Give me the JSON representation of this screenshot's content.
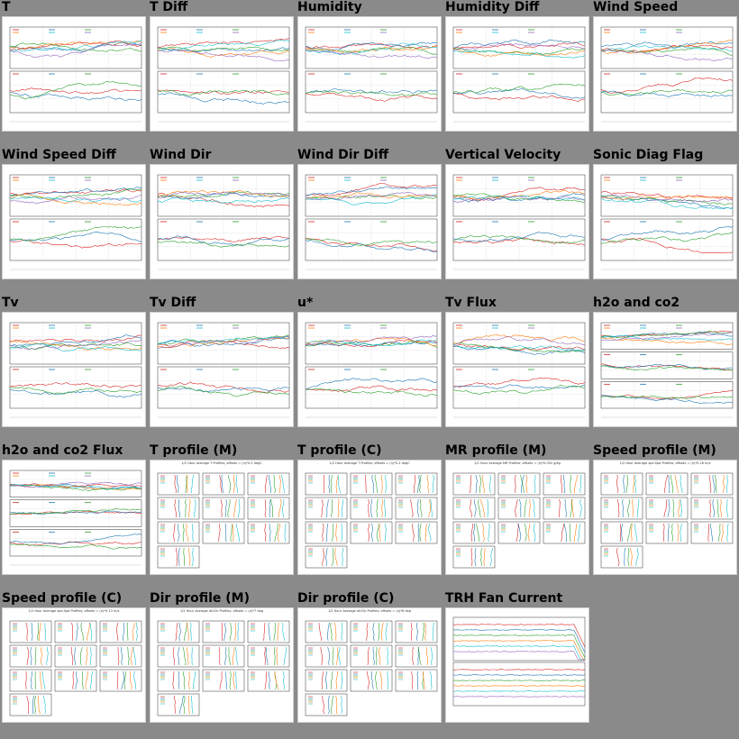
{
  "tiles": [
    {
      "title": "T",
      "kind": "ts2"
    },
    {
      "title": "T Diff",
      "kind": "ts2"
    },
    {
      "title": "Humidity",
      "kind": "ts2"
    },
    {
      "title": "Humidity Diff",
      "kind": "ts2"
    },
    {
      "title": "Wind Speed",
      "kind": "ts2"
    },
    {
      "title": "Wind Speed Diff",
      "kind": "ts2"
    },
    {
      "title": "Wind Dir",
      "kind": "ts2"
    },
    {
      "title": "Wind Dir Diff",
      "kind": "ts2"
    },
    {
      "title": "Vertical Velocity",
      "kind": "ts2"
    },
    {
      "title": "Sonic Diag Flag",
      "kind": "ts2"
    },
    {
      "title": "Tv",
      "kind": "ts2"
    },
    {
      "title": "Tv Diff",
      "kind": "ts2"
    },
    {
      "title": "u*",
      "kind": "ts2"
    },
    {
      "title": "Tv Flux",
      "kind": "ts2"
    },
    {
      "title": "h2o and co2",
      "kind": "ts3"
    },
    {
      "title": "h2o and co2 Flux",
      "kind": "ts3"
    },
    {
      "title": "T profile (M)",
      "kind": "profile",
      "caption": "1/2 Hour Average T Profiles; offsets = (n)*0.2 degC"
    },
    {
      "title": "T profile (C)",
      "kind": "profile",
      "caption": "1/2 Hour Average T Profiles; offsets = (n)*0.2 degC"
    },
    {
      "title": "MR profile (M)",
      "kind": "profile",
      "caption": "1/2 Hour Average MR Profiles; offsets = (n)*0.092 g/kg"
    },
    {
      "title": "Speed profile (M)",
      "kind": "profile",
      "caption": "1/2 Hour Average spd.Spd Profiles; offsets = (n)*0.18 m/s"
    },
    {
      "title": "Speed profile (C)",
      "kind": "profile",
      "caption": "1/2 Hour Average spd.Spd Profiles; offsets = (n)*0.13 m/s"
    },
    {
      "title": "Dir profile (M)",
      "kind": "profile",
      "caption": "1/2 Hour Average dir.Dir Profiles; offsets = (n)*7 deg"
    },
    {
      "title": "Dir profile (C)",
      "kind": "profile",
      "caption": "1/2 Hour Average dir.Dir Profiles; offsets = (n)*8 deg"
    },
    {
      "title": "TRH Fan Current",
      "kind": "fan"
    }
  ]
}
